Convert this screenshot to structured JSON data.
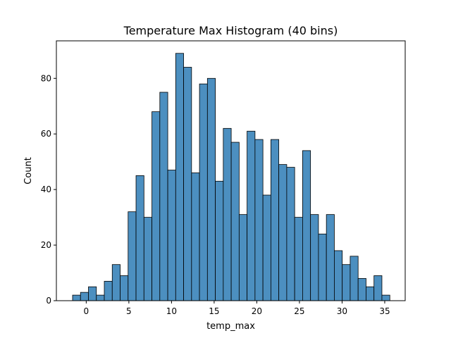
{
  "chart_data": {
    "type": "bar",
    "title": "Temperature Max Histogram (40 bins)",
    "xlabel": "temp_max",
    "ylabel": "Count",
    "bin_start": -1.6,
    "bin_width": 0.93,
    "values": [
      2,
      3,
      5,
      2,
      7,
      13,
      9,
      32,
      45,
      30,
      68,
      75,
      47,
      89,
      84,
      46,
      78,
      80,
      43,
      62,
      57,
      31,
      61,
      58,
      38,
      58,
      49,
      48,
      30,
      54,
      31,
      24,
      31,
      18,
      13,
      16,
      8,
      5,
      9,
      2
    ],
    "xlim": [
      -3.5,
      37.4
    ],
    "ylim": [
      0,
      93.5
    ],
    "xticks": [
      0,
      5,
      10,
      15,
      20,
      25,
      30,
      35
    ],
    "yticks": [
      0,
      20,
      40,
      60,
      80
    ],
    "grid": false,
    "bar_color": "#4c8fc0",
    "edge_color": "#000000"
  }
}
